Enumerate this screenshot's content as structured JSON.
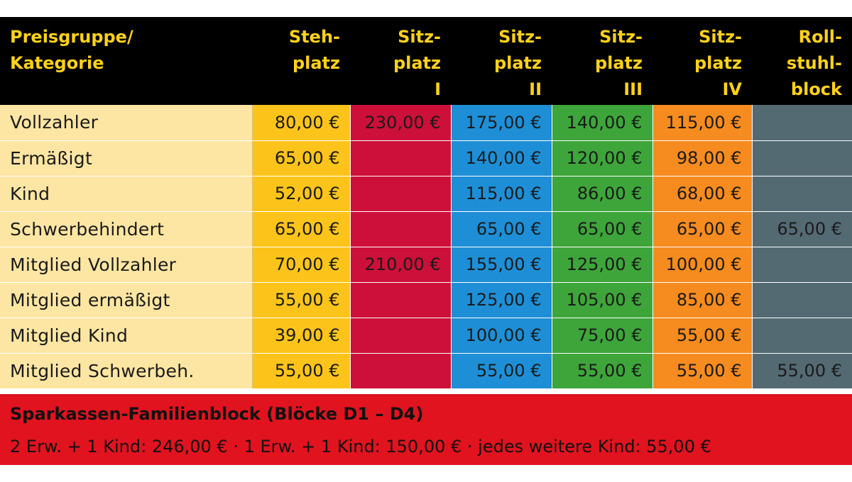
{
  "table": {
    "headers": [
      "Preisgruppe/\nKategorie",
      "Steh-\nplatz",
      "Sitz-\nplatz\nI",
      "Sitz-\nplatz\nII",
      "Sitz-\nplatz\nIII",
      "Sitz-\nplatz\nIV",
      "Roll-\nstuhl-\nblock"
    ],
    "rows": [
      {
        "category": "Vollzahler",
        "prices": [
          "80,00 €",
          "230,00 €",
          "175,00 €",
          "140,00 €",
          "115,00 €",
          ""
        ]
      },
      {
        "category": "Ermäßigt",
        "prices": [
          "65,00 €",
          "",
          "140,00 €",
          "120,00 €",
          "98,00 €",
          ""
        ]
      },
      {
        "category": "Kind",
        "prices": [
          "52,00 €",
          "",
          "115,00 €",
          "86,00 €",
          "68,00 €",
          ""
        ]
      },
      {
        "category": "Schwerbehindert",
        "prices": [
          "65,00 €",
          "",
          "65,00 €",
          "65,00 €",
          "65,00 €",
          "65,00 €"
        ]
      },
      {
        "category": "Mitglied Vollzahler",
        "prices": [
          "70,00 €",
          "210,00 €",
          "155,00 €",
          "125,00 €",
          "100,00 €",
          ""
        ]
      },
      {
        "category": "Mitglied ermäßigt",
        "prices": [
          "55,00 €",
          "",
          "125,00 €",
          "105,00 €",
          "85,00 €",
          ""
        ]
      },
      {
        "category": "Mitglied Kind",
        "prices": [
          "39,00 €",
          "",
          "100,00 €",
          "75,00 €",
          "55,00 €",
          ""
        ]
      },
      {
        "category": "Mitglied Schwerbeh.",
        "prices": [
          "55,00 €",
          "",
          "55,00 €",
          "55,00 €",
          "55,00 €",
          "55,00 €"
        ]
      }
    ],
    "column_colors": [
      "#fcc41b",
      "#cc1039",
      "#1e8fd6",
      "#3ea53b",
      "#f68b1f",
      "#546a73"
    ],
    "category_color": "#fde6a3",
    "header_color": "#000000",
    "header_text_color": "#ffd21a"
  },
  "family_block": {
    "title": "Sparkassen-Familienblock (Blöcke D1 – D4)",
    "detail": "2 Erw. + 1 Kind: 246,00 € · 1 Erw. + 1 Kind: 150,00 € · jedes weitere Kind: 55,00 €",
    "color": "#e0131f"
  }
}
